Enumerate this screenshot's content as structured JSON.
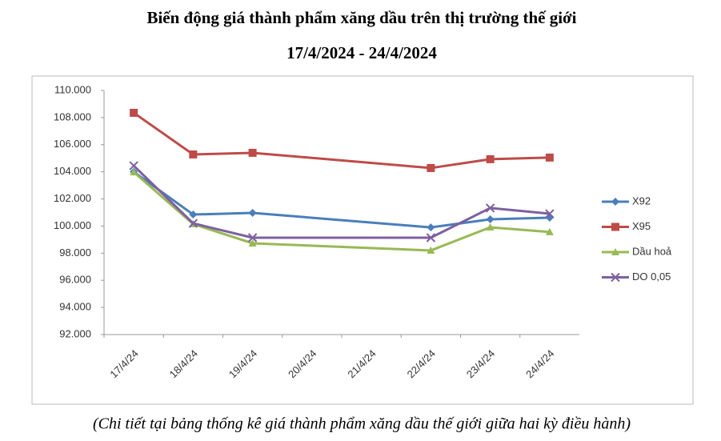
{
  "chart_data": {
    "type": "line",
    "title": "Biến động giá thành phẩm xăng dầu trên thị trường thế giới",
    "subtitle": "17/4/2024 - 24/4/2024",
    "note": "(Chi tiết tại bảng thống kê giá thành phẩm xăng dầu thế giới giữa hai kỳ điều hành)",
    "categories": [
      "17/4/24",
      "18/4/24",
      "19/4/24",
      "20/4/24",
      "21/4/24",
      "22/4/24",
      "23/4/24",
      "24/4/24"
    ],
    "connect_gaps": true,
    "series": [
      {
        "name": "X92",
        "color": "#4a7ebb",
        "marker": "diamond",
        "values": [
          104000,
          100850,
          100970,
          null,
          null,
          99900,
          100500,
          100620
        ]
      },
      {
        "name": "X95",
        "color": "#be4b48",
        "marker": "square",
        "values": [
          108350,
          105280,
          105400,
          null,
          null,
          104280,
          104930,
          105050
        ]
      },
      {
        "name": "Dầu hoả",
        "color": "#98b954",
        "marker": "triangle",
        "values": [
          103980,
          100150,
          98730,
          null,
          null,
          98200,
          99910,
          99560
        ]
      },
      {
        "name": "DO 0,05",
        "color": "#7d60a0",
        "marker": "cross",
        "values": [
          104450,
          100200,
          99140,
          null,
          null,
          99140,
          101330,
          100910
        ]
      }
    ],
    "ylim": [
      92000,
      110000
    ],
    "yticks": [
      {
        "value": 92000,
        "label": "92.000"
      },
      {
        "value": 94000,
        "label": "94.000"
      },
      {
        "value": 96000,
        "label": "96.000"
      },
      {
        "value": 98000,
        "label": "98.000"
      },
      {
        "value": 100000,
        "label": "100.000"
      },
      {
        "value": 102000,
        "label": "102.000"
      },
      {
        "value": 104000,
        "label": "104.000"
      },
      {
        "value": 106000,
        "label": "106.000"
      },
      {
        "value": 108000,
        "label": "108.000"
      },
      {
        "value": 110000,
        "label": "110.000"
      }
    ],
    "grid": false,
    "legend": "right"
  }
}
